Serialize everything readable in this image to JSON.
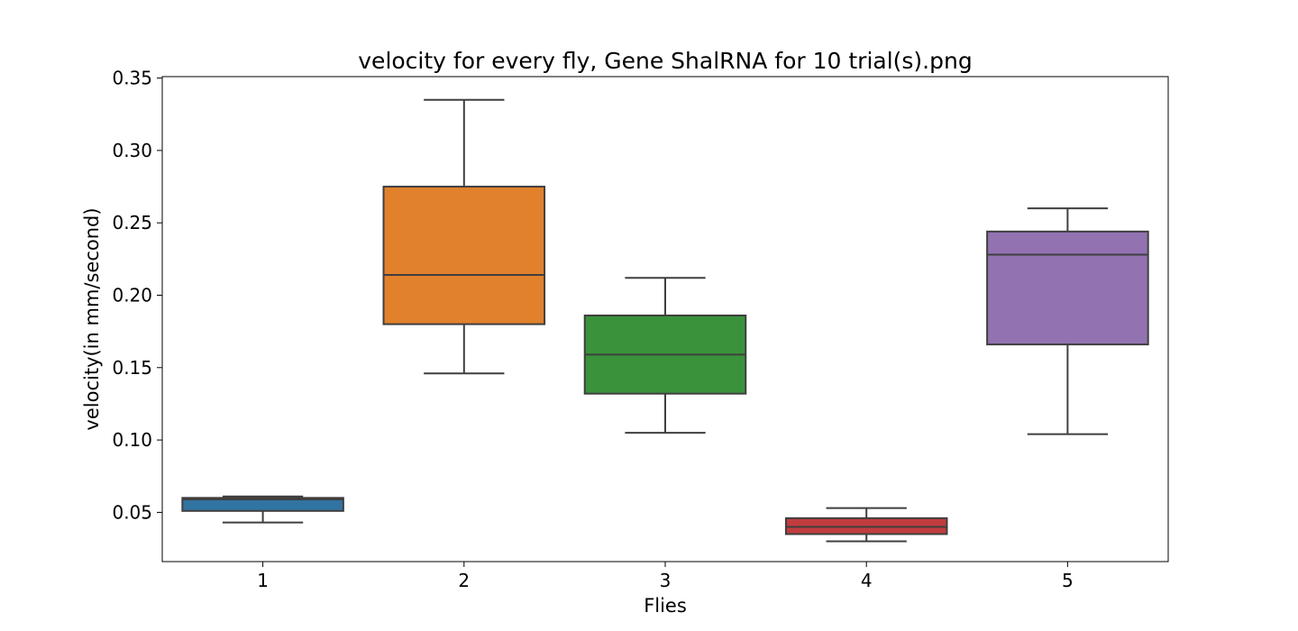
{
  "chart_data": {
    "type": "box",
    "title": "velocity for every fly, Gene ShalRNA for 10 trial(s).png",
    "xlabel": "Flies",
    "ylabel": "velocity(in mm/second)",
    "ylim": [
      0.016,
      0.351
    ],
    "y_ticks": [
      "0.05",
      "0.10",
      "0.15",
      "0.20",
      "0.25",
      "0.30",
      "0.35"
    ],
    "categories": [
      "1",
      "2",
      "3",
      "4",
      "5"
    ],
    "boxes": [
      {
        "category": "1",
        "whisker_low": 0.043,
        "q1": 0.051,
        "median": 0.059,
        "q3": 0.06,
        "whisker_high": 0.061,
        "color": "#3274a1"
      },
      {
        "category": "2",
        "whisker_low": 0.146,
        "q1": 0.18,
        "median": 0.214,
        "q3": 0.275,
        "whisker_high": 0.335,
        "color": "#e1812c"
      },
      {
        "category": "3",
        "whisker_low": 0.105,
        "q1": 0.132,
        "median": 0.159,
        "q3": 0.186,
        "whisker_high": 0.212,
        "color": "#3a923a"
      },
      {
        "category": "4",
        "whisker_low": 0.03,
        "q1": 0.035,
        "median": 0.04,
        "q3": 0.046,
        "whisker_high": 0.053,
        "color": "#c03d3e"
      },
      {
        "category": "5",
        "whisker_low": 0.104,
        "q1": 0.166,
        "median": 0.228,
        "q3": 0.244,
        "whisker_high": 0.26,
        "color": "#9372b2"
      }
    ],
    "line_color": "#3f3f3f",
    "grid": false,
    "legend": "none"
  }
}
